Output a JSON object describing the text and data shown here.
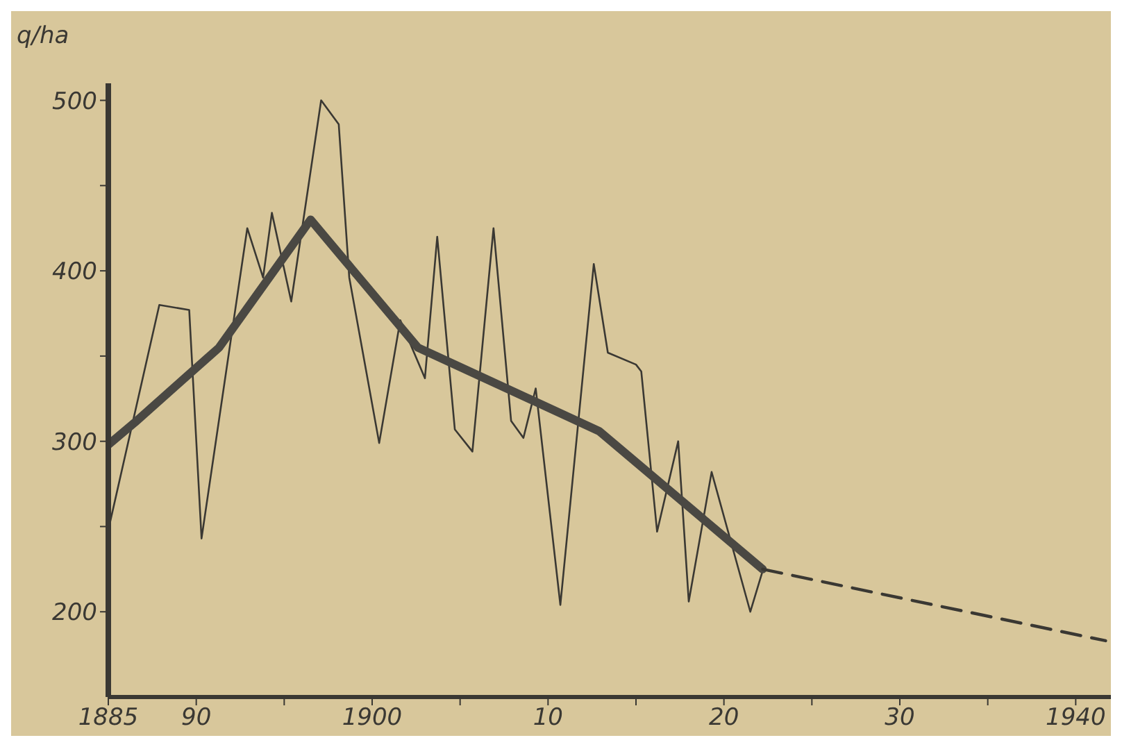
{
  "chart_data": {
    "type": "line",
    "ylabel": "q/ha",
    "xlim": [
      1885,
      1942
    ],
    "ylim": [
      150,
      510
    ],
    "xticks": [
      1885,
      {
        "value": 1890,
        "label": "90"
      },
      {
        "value": 1895,
        "label": null
      },
      1900,
      {
        "value": 1905,
        "label": null
      },
      {
        "value": 1910,
        "label": "10"
      },
      {
        "value": 1915,
        "label": null
      },
      {
        "value": 1920,
        "label": "20"
      },
      {
        "value": 1925,
        "label": null
      },
      {
        "value": 1930,
        "label": "30"
      },
      {
        "value": 1935,
        "label": null
      },
      1940
    ],
    "yticks": [
      200,
      {
        "value": 250,
        "label": null
      },
      300,
      {
        "value": 350,
        "label": null
      },
      400,
      {
        "value": 450,
        "label": null
      },
      500
    ],
    "grid": false,
    "marker": "none",
    "series": [
      {
        "color": "#3a3833",
        "line_style": "solid",
        "x": [
          1885,
          1887.9,
          1889.6,
          1890.3,
          1892.9,
          1893.8,
          1894.3,
          1895.4,
          1897.1,
          1898.1,
          1898.7,
          1900.4,
          1901.6,
          1903,
          1903.7,
          1904.7,
          1905.7,
          1906.9,
          1907.9,
          1908.6,
          1909.3,
          1910.7,
          1912.6,
          1913.4,
          1915,
          1915.3,
          1916.2,
          1917.4,
          1918,
          1919.3,
          1921.5,
          1922.2
        ],
        "values": [
          248,
          380,
          377,
          243,
          425,
          396,
          434,
          382,
          500,
          486,
          396,
          299,
          371,
          337,
          420,
          307,
          294,
          425,
          312,
          302,
          331,
          204,
          404,
          352,
          345,
          341,
          247,
          300,
          206,
          282,
          200,
          224
        ]
      },
      {
        "color": "#4a4843",
        "line_style": "solid",
        "x": [
          1885,
          1886.5,
          1891.3,
          1896.5,
          1902.6,
          1912.9,
          1922.2
        ],
        "values": [
          298,
          311,
          355,
          430,
          355,
          306,
          225
        ]
      },
      {
        "color": "#3a3833",
        "line_style": "dashed",
        "x": [
          1922.2,
          1941.7
        ],
        "values": [
          225,
          183
        ]
      }
    ]
  }
}
